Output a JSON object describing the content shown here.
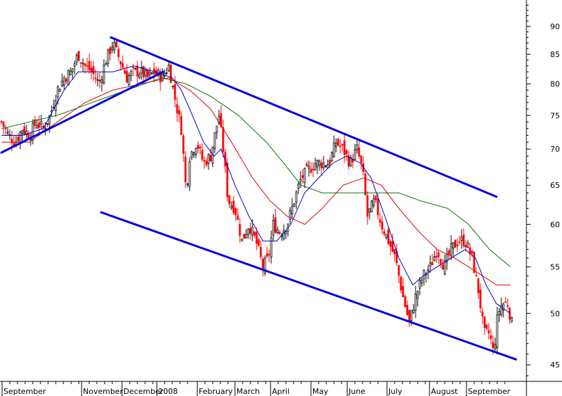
{
  "chart_data": {
    "type": "candlestick",
    "title": "",
    "xlabel": "",
    "ylabel": "",
    "y_scale": "log",
    "ylim": [
      43.5,
      95
    ],
    "grid": false,
    "legend": "none",
    "x_months": [
      "September",
      "November",
      "December",
      "2008",
      "February",
      "March",
      "April",
      "May",
      "June",
      "July",
      "August",
      "September"
    ],
    "y_ticks": [
      45,
      50,
      55,
      60,
      65,
      70,
      75,
      80,
      85,
      90
    ],
    "colors": {
      "up": "#000000",
      "down": "#ff0000",
      "ma_short": "#0000cc",
      "ma_mid": "#dd0000",
      "ma_long": "#007700",
      "trendline": "#0000dd"
    },
    "series": [
      {
        "kind": "close_approx",
        "points": [
          [
            0,
            74
          ],
          [
            10,
            72
          ],
          [
            20,
            71
          ],
          [
            30,
            73
          ],
          [
            40,
            72
          ],
          [
            50,
            74
          ],
          [
            60,
            73
          ],
          [
            70,
            75
          ],
          [
            80,
            79
          ],
          [
            90,
            81
          ],
          [
            100,
            82
          ],
          [
            110,
            85
          ],
          [
            120,
            83
          ],
          [
            130,
            82
          ],
          [
            140,
            80
          ],
          [
            150,
            84
          ],
          [
            160,
            87
          ],
          [
            170,
            84
          ],
          [
            180,
            81
          ],
          [
            190,
            82
          ],
          [
            200,
            82
          ],
          [
            210,
            81
          ],
          [
            220,
            82
          ],
          [
            230,
            81
          ],
          [
            240,
            83
          ],
          [
            250,
            77
          ],
          [
            258,
            73
          ],
          [
            265,
            64
          ],
          [
            270,
            69
          ],
          [
            280,
            71
          ],
          [
            290,
            68
          ],
          [
            300,
            69
          ],
          [
            312,
            75
          ],
          [
            318,
            70
          ],
          [
            325,
            63
          ],
          [
            335,
            62
          ],
          [
            345,
            58
          ],
          [
            355,
            60
          ],
          [
            365,
            58
          ],
          [
            375,
            55
          ],
          [
            383,
            56
          ],
          [
            390,
            60
          ],
          [
            400,
            59
          ],
          [
            410,
            60
          ],
          [
            420,
            63
          ],
          [
            430,
            66
          ],
          [
            440,
            67
          ],
          [
            450,
            68
          ],
          [
            460,
            68
          ],
          [
            470,
            68
          ],
          [
            480,
            71
          ],
          [
            490,
            70
          ],
          [
            500,
            68
          ],
          [
            510,
            70
          ],
          [
            518,
            67
          ],
          [
            525,
            61
          ],
          [
            535,
            63
          ],
          [
            545,
            60
          ],
          [
            555,
            58
          ],
          [
            565,
            56
          ],
          [
            575,
            52
          ],
          [
            585,
            49
          ],
          [
            595,
            52
          ],
          [
            605,
            54
          ],
          [
            615,
            55
          ],
          [
            625,
            57
          ],
          [
            635,
            55
          ],
          [
            645,
            57
          ],
          [
            655,
            58
          ],
          [
            665,
            58
          ],
          [
            675,
            56
          ],
          [
            685,
            52
          ],
          [
            692,
            48
          ],
          [
            700,
            48
          ],
          [
            706,
            46
          ],
          [
            712,
            50
          ],
          [
            718,
            51
          ],
          [
            726,
            51
          ],
          [
            732,
            49
          ]
        ]
      },
      {
        "name": "",
        "kind": "ma_short",
        "points": [
          [
            0,
            72
          ],
          [
            30,
            72
          ],
          [
            60,
            73
          ],
          [
            90,
            79
          ],
          [
            110,
            82
          ],
          [
            130,
            82
          ],
          [
            160,
            82
          ],
          [
            190,
            83
          ],
          [
            220,
            82
          ],
          [
            245,
            81
          ],
          [
            258,
            79
          ],
          [
            270,
            76
          ],
          [
            290,
            71
          ],
          [
            305,
            69
          ],
          [
            315,
            70
          ],
          [
            335,
            65
          ],
          [
            355,
            61
          ],
          [
            375,
            58
          ],
          [
            395,
            58
          ],
          [
            415,
            60
          ],
          [
            435,
            64
          ],
          [
            455,
            66
          ],
          [
            475,
            68
          ],
          [
            495,
            69
          ],
          [
            515,
            68
          ],
          [
            530,
            66
          ],
          [
            550,
            61
          ],
          [
            570,
            56
          ],
          [
            590,
            53
          ],
          [
            605,
            54
          ],
          [
            625,
            55
          ],
          [
            645,
            56
          ],
          [
            665,
            57
          ],
          [
            680,
            56
          ],
          [
            695,
            53
          ],
          [
            710,
            51
          ],
          [
            730,
            50
          ]
        ]
      },
      {
        "name": "",
        "kind": "ma_mid",
        "points": [
          [
            0,
            71
          ],
          [
            40,
            71
          ],
          [
            80,
            74
          ],
          [
            120,
            77
          ],
          [
            160,
            79
          ],
          [
            200,
            80
          ],
          [
            240,
            81
          ],
          [
            270,
            79
          ],
          [
            300,
            76
          ],
          [
            330,
            71
          ],
          [
            360,
            66
          ],
          [
            385,
            63
          ],
          [
            410,
            61
          ],
          [
            435,
            60
          ],
          [
            460,
            62
          ],
          [
            490,
            65
          ],
          [
            520,
            66
          ],
          [
            545,
            65
          ],
          [
            570,
            62
          ],
          [
            600,
            59
          ],
          [
            625,
            57
          ],
          [
            650,
            56
          ],
          [
            670,
            55
          ],
          [
            690,
            54
          ],
          [
            710,
            53
          ],
          [
            730,
            53
          ]
        ]
      },
      {
        "name": "",
        "kind": "ma_long",
        "points": [
          [
            0,
            73
          ],
          [
            40,
            74
          ],
          [
            80,
            75
          ],
          [
            130,
            77
          ],
          [
            180,
            79
          ],
          [
            230,
            81
          ],
          [
            265,
            80
          ],
          [
            300,
            78
          ],
          [
            340,
            75
          ],
          [
            380,
            71
          ],
          [
            405,
            68
          ],
          [
            430,
            65
          ],
          [
            460,
            64
          ],
          [
            500,
            64
          ],
          [
            540,
            64
          ],
          [
            570,
            64
          ],
          [
            600,
            63
          ],
          [
            640,
            62
          ],
          [
            670,
            60
          ],
          [
            700,
            57
          ],
          [
            730,
            55
          ]
        ]
      },
      {
        "name": "",
        "kind": "trendline",
        "points": [
          [
            0,
            69.5
          ],
          [
            232,
            82
          ]
        ]
      },
      {
        "name": "",
        "kind": "trendline",
        "points": [
          [
            157,
            88
          ],
          [
            710,
            63.5
          ]
        ]
      },
      {
        "name": "",
        "kind": "trendline",
        "points": [
          [
            143,
            61.5
          ],
          [
            738,
            45.5
          ]
        ]
      }
    ]
  }
}
